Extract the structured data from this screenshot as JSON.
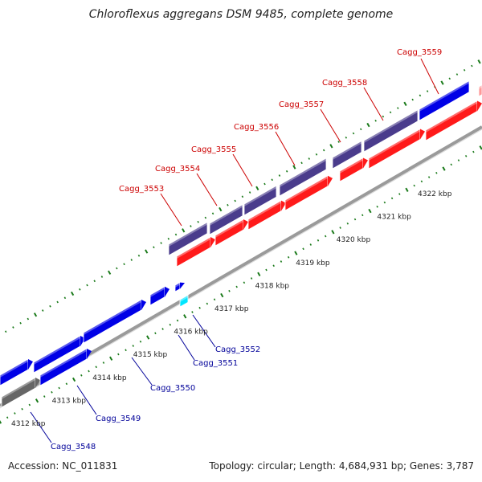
{
  "title": "Chloroflexus aggregans DSM 9485, complete genome",
  "footer": {
    "accession": "Accession: NC_011831",
    "summary": "Topology: circular; Length: 4,684,931 bp; Genes: 3,787"
  },
  "colors": {
    "forward_cds": "#0000e6",
    "forward_other": "#4a3c8c",
    "reverse_cds": "#ff1a1a",
    "reverse_other": "#666666",
    "cyan": "#00e5ff",
    "pink": "#ff9999",
    "backbone": "#777777",
    "ticks": "#1a7a1a",
    "label_forward": "#cc0000",
    "label_reverse": "#000099"
  },
  "axis": {
    "ticks": [
      {
        "label": "4312 kbp"
      },
      {
        "label": "4313 kbp"
      },
      {
        "label": "4314 kbp"
      },
      {
        "label": "4315 kbp"
      },
      {
        "label": "4316 kbp"
      },
      {
        "label": "4317 kbp"
      },
      {
        "label": "4318 kbp"
      },
      {
        "label": "4319 kbp"
      },
      {
        "label": "4320 kbp"
      },
      {
        "label": "4321 kbp"
      },
      {
        "label": "4322 kbp"
      }
    ]
  },
  "genes": {
    "upper": [
      {
        "name": "Cagg_3553"
      },
      {
        "name": "Cagg_3554"
      },
      {
        "name": "Cagg_3555"
      },
      {
        "name": "Cagg_3556"
      },
      {
        "name": "Cagg_3557"
      },
      {
        "name": "Cagg_3558"
      },
      {
        "name": "Cagg_3559"
      }
    ],
    "lower": [
      {
        "name": "Cagg_3552"
      },
      {
        "name": "Cagg_3551"
      },
      {
        "name": "Cagg_3550"
      },
      {
        "name": "Cagg_3549"
      },
      {
        "name": "Cagg_3548"
      }
    ]
  }
}
